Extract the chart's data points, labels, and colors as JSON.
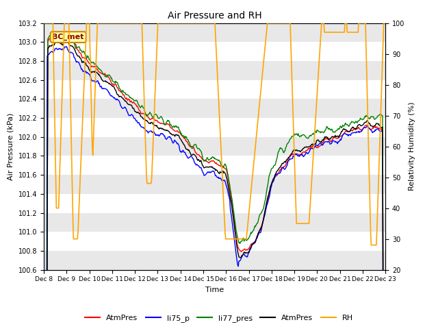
{
  "title": "Air Pressure and RH",
  "xlabel": "Time",
  "ylabel_left": "Air Pressure (kPa)",
  "ylabel_right": "Relativity Humidity (%)",
  "ylim_left": [
    100.6,
    103.2
  ],
  "ylim_right": [
    20,
    100
  ],
  "yticks_left": [
    100.6,
    100.8,
    101.0,
    101.2,
    101.4,
    101.6,
    101.8,
    102.0,
    102.2,
    102.4,
    102.6,
    102.8,
    103.0,
    103.2
  ],
  "yticks_right": [
    20,
    30,
    40,
    50,
    60,
    70,
    80,
    90,
    100
  ],
  "xtick_labels": [
    "Dec 8",
    "Dec 9",
    "Dec 10",
    "Dec 11",
    "Dec 12",
    "Dec 13",
    "Dec 14",
    "Dec 15",
    "Dec 16",
    "Dec 17",
    "Dec 18",
    "Dec 19",
    "Dec 20",
    "Dec 21",
    "Dec 22",
    "Dec 23"
  ],
  "annotation_text": "BC_met",
  "legend_entries": [
    "AtmPres",
    "li75_p",
    "li77_pres",
    "AtmPres",
    "RH"
  ],
  "legend_colors": [
    "red",
    "blue",
    "green",
    "black",
    "orange"
  ],
  "background_color": "#ffffff",
  "stripe_color": "#e8e8e8",
  "grid_line_color": "#d0d0d0"
}
